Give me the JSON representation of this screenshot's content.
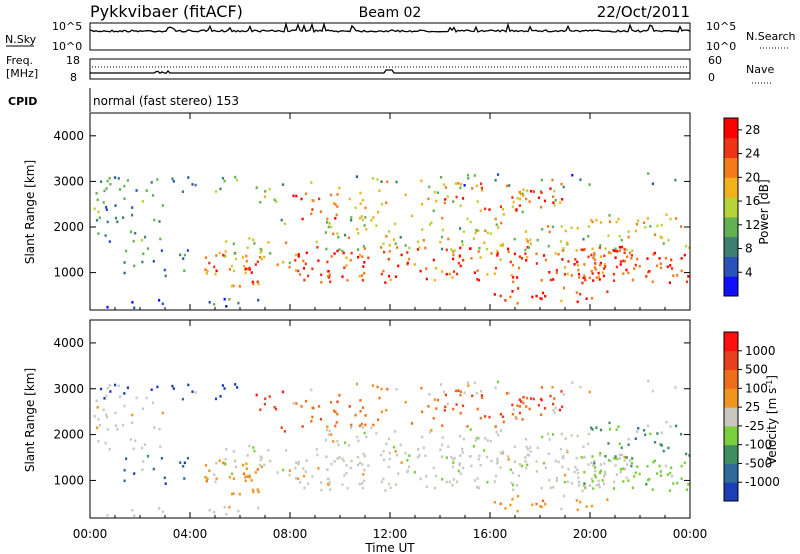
{
  "header": {
    "station": "Pykkvibaer (fitACF)",
    "beam": "Beam 02",
    "date": "22/Oct/2011"
  },
  "top_panels": {
    "nsky_label": "N.Sky",
    "nsky_ticks": [
      "10^5",
      "10^0"
    ],
    "nsearch_label": "N.Search",
    "nsearch_ticks": [
      "10^5",
      "10^0"
    ],
    "freq_label": "Freq.",
    "freq_unit": "[MHz]",
    "freq_ticks": [
      "18",
      "8"
    ],
    "nave_label": "Nave",
    "nave_ticks": [
      "60",
      "0"
    ],
    "cpid_label": "CPID",
    "cpid_text": "normal (fast stereo) 153"
  },
  "chart_data": [
    {
      "type": "heatmap",
      "name": "power",
      "ylabel": "Slant Range [km]",
      "xlabel": "Time UT",
      "x_ticks": [
        "00:00",
        "04:00",
        "08:00",
        "12:00",
        "16:00",
        "20:00",
        "00:00"
      ],
      "x_range_hours": [
        0,
        24
      ],
      "ylim": [
        180,
        4500
      ],
      "y_ticks": [
        1000,
        2000,
        3000,
        4000
      ],
      "colorbar": {
        "label": "Power [dB]",
        "ticks": [
          4,
          8,
          12,
          16,
          20,
          24,
          28
        ],
        "range": [
          0,
          30
        ],
        "colors": [
          "#1010ff",
          "#2a52b8",
          "#3d7f73",
          "#62b153",
          "#b8d33a",
          "#f2b21d",
          "#f47a1a",
          "#ee3414",
          "#ff0000"
        ]
      }
    },
    {
      "type": "heatmap",
      "name": "velocity",
      "ylabel": "Slant Range [km]",
      "xlabel": "Time UT",
      "x_ticks": [
        "00:00",
        "04:00",
        "08:00",
        "12:00",
        "16:00",
        "20:00",
        "00:00"
      ],
      "x_range_hours": [
        0,
        24
      ],
      "ylim": [
        180,
        4500
      ],
      "y_ticks": [
        1000,
        2000,
        3000,
        4000
      ],
      "colorbar": {
        "label": "Velocity [m s^-1]",
        "ticks": [
          "1000",
          "500",
          "100",
          "25",
          "-25",
          "-100",
          "-500",
          "-1000"
        ],
        "colors": [
          "#1c3fb6",
          "#2e6b9a",
          "#3d8f61",
          "#7ccf3c",
          "#c8c8c0",
          "#ef9520",
          "#ef6e1a",
          "#e8401c",
          "#ff1010"
        ]
      }
    }
  ]
}
